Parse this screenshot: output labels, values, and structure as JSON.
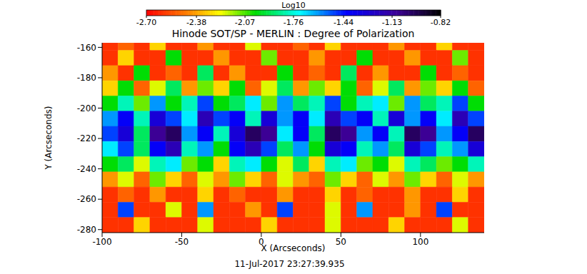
{
  "chart_data": {
    "type": "heatmap",
    "title": "Hinode SOT/SP - MERLIN : Degree of Polarization",
    "subtitle": "11-Jul-2017 23:27:39.935",
    "x_label": "X (Arcseconds)",
    "y_label": "Y (Arcseconds)",
    "xlim": [
      -100,
      140
    ],
    "ylim": [
      -282,
      -157
    ],
    "xticks": [
      -100,
      -50,
      0,
      50,
      100
    ],
    "yticks": [
      -280,
      -260,
      -240,
      -220,
      -200,
      -180,
      -160
    ],
    "x_edges": [
      -100,
      -90,
      -80,
      -70,
      -60,
      -50,
      -40,
      -30,
      -20,
      -10,
      0,
      10,
      20,
      30,
      40,
      50,
      60,
      70,
      80,
      90,
      100,
      110,
      120,
      130,
      140
    ],
    "y_edges": [
      -157,
      -162,
      -172,
      -182,
      -192,
      -202,
      -212,
      -222,
      -232,
      -242,
      -252,
      -262,
      -272,
      -282
    ],
    "cells": [
      [
        -2.6,
        -2.5,
        -2.6,
        -2.3,
        -2.6,
        -2.6,
        -2.4,
        -2.6,
        -2.6,
        -2.2,
        -2.6,
        -2.6,
        -2.5,
        -2.6,
        -2.3,
        -2.6,
        -2.6,
        -2.6,
        -2.4,
        -2.6,
        -2.6,
        -2.3,
        -2.6,
        -2.6
      ],
      [
        -2.6,
        -2.3,
        -2.6,
        -2.6,
        -2.0,
        -2.6,
        -2.6,
        -2.4,
        -2.6,
        -2.6,
        -2.1,
        -2.6,
        -2.6,
        -2.4,
        -2.6,
        -2.6,
        -2.0,
        -2.6,
        -2.6,
        -2.4,
        -2.6,
        -2.6,
        -2.1,
        -2.6
      ],
      [
        -2.4,
        -2.6,
        -2.0,
        -2.6,
        -2.5,
        -2.6,
        -1.9,
        -2.6,
        -2.4,
        -2.6,
        -2.6,
        -2.0,
        -2.6,
        -2.5,
        -2.6,
        -1.9,
        -2.6,
        -2.4,
        -2.6,
        -2.6,
        -2.0,
        -2.6,
        -2.5,
        -2.6
      ],
      [
        -2.3,
        -2.0,
        -2.5,
        -2.2,
        -1.9,
        -2.4,
        -2.1,
        -2.3,
        -2.0,
        -2.5,
        -2.2,
        -1.9,
        -2.4,
        -2.1,
        -2.3,
        -2.0,
        -2.5,
        -2.2,
        -1.9,
        -2.4,
        -2.1,
        -2.3,
        -2.0,
        -2.5
      ],
      [
        -2.0,
        -1.8,
        -2.1,
        -1.6,
        -2.0,
        -1.8,
        -1.5,
        -2.0,
        -1.9,
        -1.7,
        -2.1,
        -1.6,
        -1.9,
        -1.8,
        -1.5,
        -2.0,
        -1.8,
        -1.7,
        -2.1,
        -1.6,
        -1.9,
        -1.8,
        -1.5,
        -2.0
      ],
      [
        -1.6,
        -1.4,
        -1.8,
        -1.3,
        -1.5,
        -1.7,
        -1.2,
        -1.5,
        -1.4,
        -1.8,
        -1.3,
        -1.6,
        -1.4,
        -1.7,
        -1.2,
        -1.5,
        -1.4,
        -1.8,
        -1.3,
        -1.6,
        -1.4,
        -1.7,
        -1.2,
        -1.5
      ],
      [
        -1.5,
        -1.3,
        -1.9,
        -1.1,
        -1.0,
        -1.6,
        -1.4,
        -1.8,
        -1.3,
        -1.0,
        -1.1,
        -1.7,
        -1.4,
        -1.9,
        -1.0,
        -1.1,
        -1.6,
        -1.4,
        -1.8,
        -1.0,
        -1.1,
        -1.6,
        -1.4,
        -1.0
      ],
      [
        -1.7,
        -1.5,
        -1.9,
        -1.4,
        -1.2,
        -1.8,
        -1.6,
        -2.0,
        -1.4,
        -1.2,
        -1.5,
        -1.9,
        -1.6,
        -2.0,
        -1.3,
        -1.4,
        -1.8,
        -1.6,
        -1.9,
        -1.3,
        -1.5,
        -1.8,
        -1.6,
        -1.3
      ],
      [
        -2.0,
        -1.9,
        -2.2,
        -1.8,
        -1.7,
        -2.1,
        -2.0,
        -2.3,
        -1.8,
        -1.7,
        -2.0,
        -2.2,
        -1.9,
        -2.3,
        -1.8,
        -1.7,
        -2.1,
        -2.0,
        -2.2,
        -1.8,
        -1.9,
        -2.1,
        -2.0,
        -1.8
      ],
      [
        -2.4,
        -2.2,
        -2.5,
        -2.1,
        -2.3,
        -2.5,
        -2.2,
        -2.4,
        -2.1,
        -2.3,
        -2.5,
        -2.2,
        -2.4,
        -2.5,
        -2.1,
        -2.3,
        -2.5,
        -2.2,
        -2.4,
        -2.1,
        -2.3,
        -2.5,
        -2.2,
        -2.4
      ],
      [
        -2.6,
        -2.5,
        -2.6,
        -2.4,
        -2.6,
        -2.6,
        -2.3,
        -2.6,
        -2.5,
        -2.6,
        -2.6,
        -2.4,
        -2.6,
        -2.6,
        -2.3,
        -2.6,
        -2.5,
        -2.6,
        -2.6,
        -2.4,
        -2.6,
        -2.6,
        -2.3,
        -2.6
      ],
      [
        -2.6,
        -1.5,
        -2.6,
        -2.6,
        -2.2,
        -2.6,
        -1.6,
        -2.6,
        -2.6,
        -2.4,
        -2.6,
        -1.5,
        -2.6,
        -2.6,
        -2.2,
        -2.6,
        -1.6,
        -2.6,
        -2.6,
        -2.4,
        -2.6,
        -1.5,
        -2.6,
        -2.6
      ],
      [
        -2.6,
        -2.6,
        -2.3,
        -2.6,
        -2.6,
        -2.6,
        -2.2,
        -2.6,
        -2.6,
        -2.6,
        -2.3,
        -2.6,
        -2.6,
        -2.6,
        -2.2,
        -2.6,
        -2.6,
        -2.6,
        -2.3,
        -2.6,
        -2.6,
        -2.6,
        -2.2,
        -2.6
      ]
    ],
    "colorbar": {
      "label": "Log10",
      "range": [
        -2.7,
        -0.82
      ],
      "ticks": [
        {
          "value": -2.7,
          "label": "-2.70"
        },
        -2.38,
        -2.07,
        -1.76,
        -1.44,
        -1.13,
        -0.82
      ]
    }
  }
}
